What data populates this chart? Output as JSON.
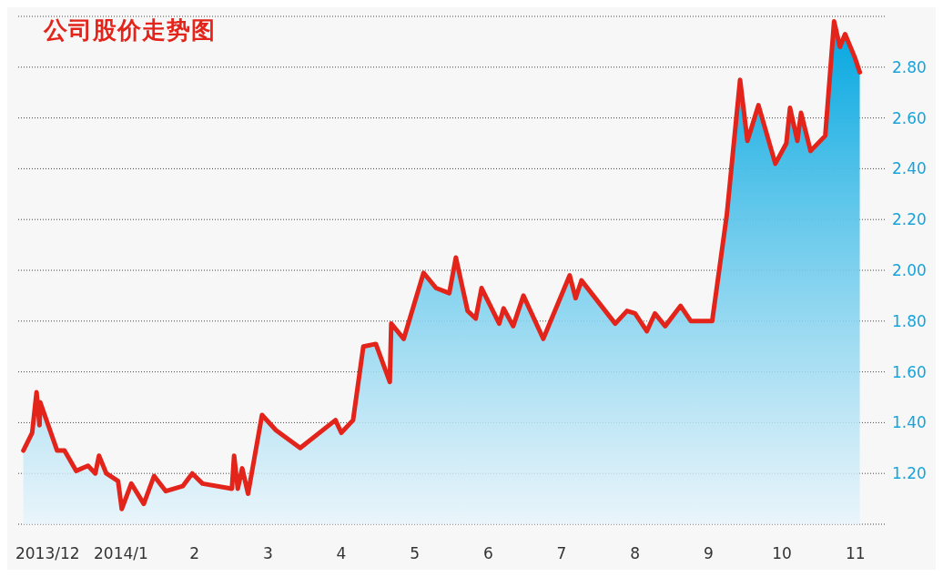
{
  "chart_data": {
    "type": "area",
    "title": "公司股价走势图",
    "x": [
      -0.33,
      -0.21,
      -0.15,
      -0.11,
      -0.1,
      0.13,
      0.23,
      0.39,
      0.55,
      0.65,
      0.7,
      0.8,
      0.96,
      1.01,
      1.14,
      1.31,
      1.45,
      1.61,
      1.84,
      1.97,
      2.11,
      2.51,
      2.54,
      2.59,
      2.65,
      2.73,
      2.92,
      3.11,
      3.44,
      3.92,
      4.0,
      4.16,
      4.3,
      4.47,
      4.66,
      4.68,
      4.85,
      5.12,
      5.29,
      5.47,
      5.56,
      5.72,
      5.83,
      5.91,
      6.15,
      6.21,
      6.34,
      6.48,
      6.75,
      7.11,
      7.19,
      7.27,
      7.73,
      7.89,
      8.0,
      8.16,
      8.27,
      8.41,
      8.62,
      8.76,
      9.05,
      9.25,
      9.43,
      9.53,
      9.68,
      9.91,
      10.06,
      10.11,
      10.21,
      10.26,
      10.39,
      10.59,
      10.71,
      10.79,
      10.86,
      10.99,
      11.06
    ],
    "series": [
      {
        "color": "#e3241b",
        "values": [
          1.29,
          1.36,
          1.52,
          1.39,
          1.48,
          1.29,
          1.29,
          1.21,
          1.23,
          1.2,
          1.27,
          1.2,
          1.17,
          1.06,
          1.16,
          1.08,
          1.19,
          1.13,
          1.15,
          1.2,
          1.16,
          1.14,
          1.27,
          1.14,
          1.22,
          1.12,
          1.43,
          1.37,
          1.3,
          1.41,
          1.36,
          1.41,
          1.7,
          1.71,
          1.56,
          1.79,
          1.73,
          1.99,
          1.93,
          1.91,
          2.05,
          1.84,
          1.81,
          1.93,
          1.79,
          1.85,
          1.78,
          1.9,
          1.73,
          1.98,
          1.89,
          1.96,
          1.79,
          1.84,
          1.83,
          1.76,
          1.83,
          1.78,
          1.86,
          1.8,
          1.8,
          2.22,
          2.75,
          2.51,
          2.65,
          2.42,
          2.5,
          2.64,
          2.51,
          2.62,
          2.47,
          2.53,
          2.98,
          2.88,
          2.93,
          2.84,
          2.78
        ]
      }
    ],
    "xlim": [
      -0.4,
      11.4
    ],
    "xticks": [
      {
        "value": 0,
        "label": "2013/12"
      },
      {
        "value": 1,
        "label": "2014/1"
      },
      2,
      3,
      4,
      5,
      6,
      7,
      8,
      9,
      10,
      11
    ],
    "ylim": [
      1.0,
      3.0
    ],
    "yticks": [
      {
        "value": 1.2,
        "label": "1.20"
      },
      {
        "value": 1.4,
        "label": "1.40"
      },
      {
        "value": 1.6,
        "label": "1.60"
      },
      {
        "value": 1.8,
        "label": "1.80"
      },
      {
        "value": 2.0,
        "label": "2.00"
      },
      {
        "value": 2.2,
        "label": "2.20"
      },
      {
        "value": 2.4,
        "label": "2.40"
      },
      {
        "value": 2.6,
        "label": "2.60"
      },
      {
        "value": 2.8,
        "label": "2.80"
      }
    ],
    "grid": "y"
  }
}
